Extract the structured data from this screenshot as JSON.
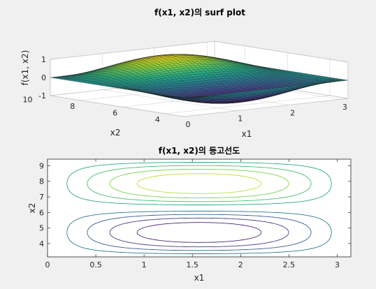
{
  "chart_data": [
    {
      "type": "surface",
      "title": "f(x1, x2)의 surf plot",
      "xlabel": "x1",
      "ylabel": "x2",
      "zlabel": "f(x1, x2)",
      "x_range": [
        0,
        3.14159
      ],
      "y_range": [
        3.14159,
        9.42478
      ],
      "z_range": [
        -1,
        1
      ],
      "function": "sin(x1)*sin(x2)",
      "colormap": "viridis",
      "xticks": [
        "0",
        "1",
        "2",
        "3"
      ],
      "yticks": [
        "4",
        "6",
        "8",
        "10"
      ],
      "zticks": [
        "-1",
        "0",
        "1"
      ],
      "grid": true
    },
    {
      "type": "contour",
      "title": "f(x1, x2)의 등고선도",
      "xlabel": "x1",
      "ylabel": "x2",
      "xlim": [
        0,
        3.14159
      ],
      "ylim": [
        3.14159,
        9.42478
      ],
      "function": "sin(x1)*sin(x2)",
      "colormap": "viridis",
      "levels": [
        -0.8,
        -0.6,
        -0.4,
        -0.2,
        0.2,
        0.4,
        0.6,
        0.8
      ],
      "xticks": [
        "0",
        "0.5",
        "1",
        "1.5",
        "2",
        "2.5",
        "3"
      ],
      "yticks": [
        "4",
        "5",
        "6",
        "7",
        "8",
        "9"
      ],
      "grid": false
    }
  ]
}
